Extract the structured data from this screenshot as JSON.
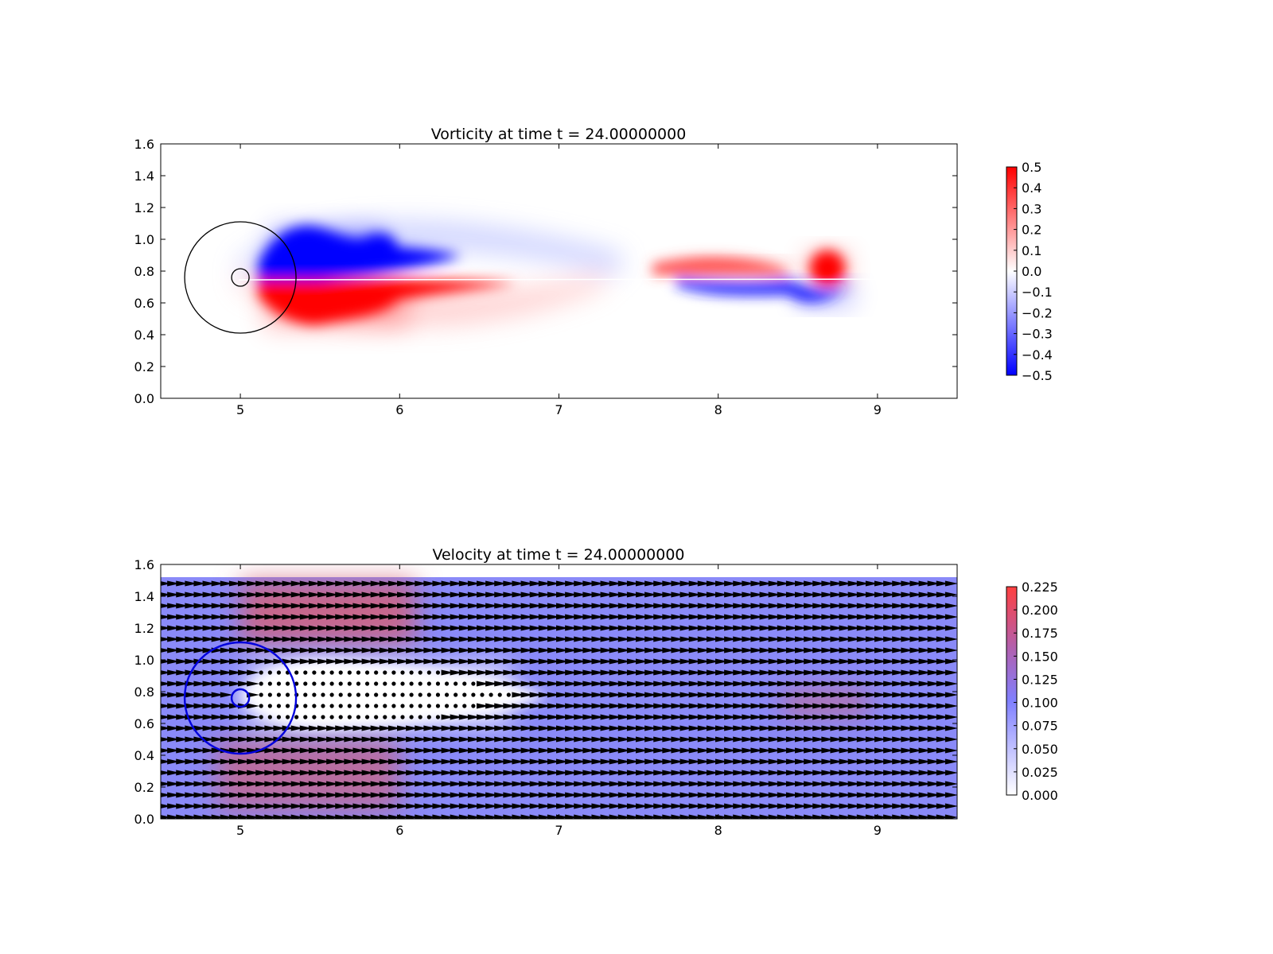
{
  "chart_data": [
    {
      "type": "heatmap",
      "title": "Vorticity at time t =    24.00000000",
      "xlim": [
        4.5,
        9.5
      ],
      "ylim": [
        0.0,
        1.6
      ],
      "xticks": [
        "5",
        "6",
        "7",
        "8",
        "9"
      ],
      "yticks": [
        "0.0",
        "0.2",
        "0.4",
        "0.6",
        "0.8",
        "1.0",
        "1.2",
        "1.4",
        "1.6"
      ],
      "colormap": {
        "low": "#0000ff",
        "mid": "#ffffff",
        "high": "#ff0000"
      },
      "colorbar": {
        "range": [
          -0.5,
          0.5
        ],
        "ticks": [
          "0.5",
          "0.4",
          "0.3",
          "0.2",
          "0.1",
          "0.0",
          "−0.1",
          "−0.2",
          "−0.3",
          "−0.4",
          "−0.5"
        ]
      },
      "circles": [
        {
          "x": 5.0,
          "y": 0.76,
          "r": 0.35,
          "color": "#000000"
        },
        {
          "x": 5.0,
          "y": 0.76,
          "r": 0.055,
          "color": "#000000"
        }
      ],
      "regions": [
        {
          "sign": "negative",
          "x": [
            5.18,
            5.9
          ],
          "y": [
            0.78,
            1.08
          ],
          "level": -0.5
        },
        {
          "sign": "positive",
          "x": [
            5.15,
            6.05
          ],
          "y": [
            0.44,
            0.76
          ],
          "level": 0.5
        },
        {
          "sign": "positive",
          "x": [
            7.8,
            8.45
          ],
          "y": [
            0.76,
            0.86
          ],
          "level": 0.3
        },
        {
          "sign": "positive",
          "x": [
            8.55,
            8.82
          ],
          "y": [
            0.72,
            0.92
          ],
          "level": 0.5
        },
        {
          "sign": "negative",
          "x": [
            7.9,
            8.5
          ],
          "y": [
            0.66,
            0.76
          ],
          "level": -0.3
        },
        {
          "sign": "negative",
          "x": [
            8.5,
            8.85
          ],
          "y": [
            0.58,
            0.72
          ],
          "level": -0.5
        }
      ]
    },
    {
      "type": "heatmap",
      "title": "Velocity at time t =    24.00000000",
      "xlim": [
        4.5,
        9.5
      ],
      "ylim": [
        0.0,
        1.6
      ],
      "xticks": [
        "5",
        "6",
        "7",
        "8",
        "9"
      ],
      "yticks": [
        "0.0",
        "0.2",
        "0.4",
        "0.6",
        "0.8",
        "1.0",
        "1.2",
        "1.4",
        "1.6"
      ],
      "field_top": 1.52,
      "colormap": {
        "low": "#ffffff",
        "mid": "#8080ff",
        "high": "#ff4040"
      },
      "colorbar": {
        "range": [
          0.0,
          0.225
        ],
        "ticks": [
          "0.225",
          "0.200",
          "0.175",
          "0.150",
          "0.125",
          "0.100",
          "0.075",
          "0.050",
          "0.025",
          "0.000"
        ]
      },
      "background_speed": 0.1,
      "circles": [
        {
          "x": 5.0,
          "y": 0.76,
          "r": 0.35,
          "color": "#0000dd"
        },
        {
          "x": 5.0,
          "y": 0.76,
          "r": 0.055,
          "color": "#0000dd"
        }
      ],
      "regions": [
        {
          "kind": "fast",
          "x": [
            5.0,
            6.1
          ],
          "y": [
            1.1,
            1.5
          ],
          "speed": 0.18
        },
        {
          "kind": "fast",
          "x": [
            4.85,
            6.0
          ],
          "y": [
            0.05,
            0.5
          ],
          "speed": 0.17
        },
        {
          "kind": "fast",
          "x": [
            8.4,
            8.95
          ],
          "y": [
            0.66,
            0.8
          ],
          "speed": 0.16
        },
        {
          "kind": "slow",
          "x": [
            5.05,
            6.7
          ],
          "y": [
            0.58,
            0.98
          ],
          "speed": 0.01
        }
      ],
      "quiver": {
        "x_step": 0.0555,
        "y_step": 0.07,
        "direction": "+x",
        "stagnant_region": {
          "x": [
            5.1,
            6.7
          ],
          "y": [
            0.58,
            0.98
          ]
        }
      }
    }
  ]
}
